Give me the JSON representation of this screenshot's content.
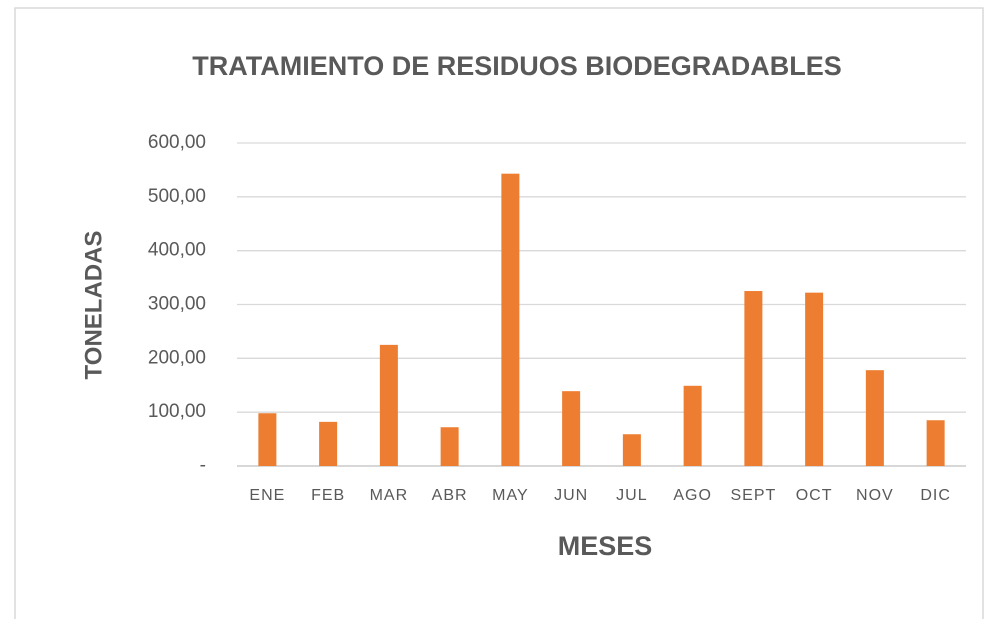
{
  "chart_data": {
    "type": "bar",
    "title": "TRATAMIENTO  DE RESIDUOS BIODEGRADABLES",
    "x_label": "MESES",
    "y_label": "TONELADAS",
    "categories": [
      "ENE",
      "FEB",
      "MAR",
      "ABR",
      "MAY",
      "JUN",
      "JUL",
      "AGO",
      "SEPT",
      "OCT",
      "NOV",
      "DIC"
    ],
    "values": [
      98,
      82,
      225,
      72,
      543,
      139,
      59,
      149,
      325,
      322,
      178,
      85
    ],
    "color": "#ed7d31",
    "ylim": [
      0,
      600
    ],
    "yticks": [
      {
        "value": 0,
        "label": "-"
      },
      {
        "value": 100,
        "label": "100,00"
      },
      {
        "value": 200,
        "label": "200,00"
      },
      {
        "value": 300,
        "label": "300,00"
      },
      {
        "value": 400,
        "label": "400,00"
      },
      {
        "value": 500,
        "label": "500,00"
      },
      {
        "value": 600,
        "label": "600,00"
      }
    ],
    "grid": true
  }
}
